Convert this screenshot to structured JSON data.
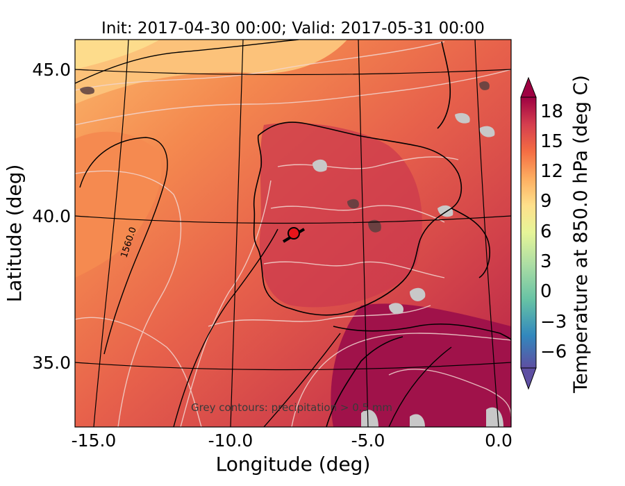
{
  "title": "Init: 2017-04-30 00:00; Valid: 2017-05-31 00:00",
  "axes": {
    "xlabel": "Longitude (deg)",
    "ylabel": "Latitude (deg)",
    "xticks": [
      "-15.0",
      "-10.0",
      "-5.0",
      "0.0"
    ],
    "yticks": [
      "45.0",
      "40.0",
      "35.0"
    ]
  },
  "colorbar": {
    "label": "Temperature at 850.0 hPa (deg C)",
    "ticks": [
      "18",
      "15",
      "12",
      "9",
      "6",
      "3",
      "0",
      "−3",
      "−6"
    ],
    "range": [
      -9,
      21
    ],
    "extend": "both",
    "colormap": "Spectral_r"
  },
  "contour_label": "1560.0",
  "annotation": "Grey contours: precipitation > 0.5 mm",
  "marker": {
    "lon": -7.6,
    "lat": 39.4,
    "color": "#e8141a"
  },
  "colors": {
    "land_line": "#000000",
    "contour_white": "#f2d6d0",
    "precip_grey": "#c8c8c8"
  }
}
